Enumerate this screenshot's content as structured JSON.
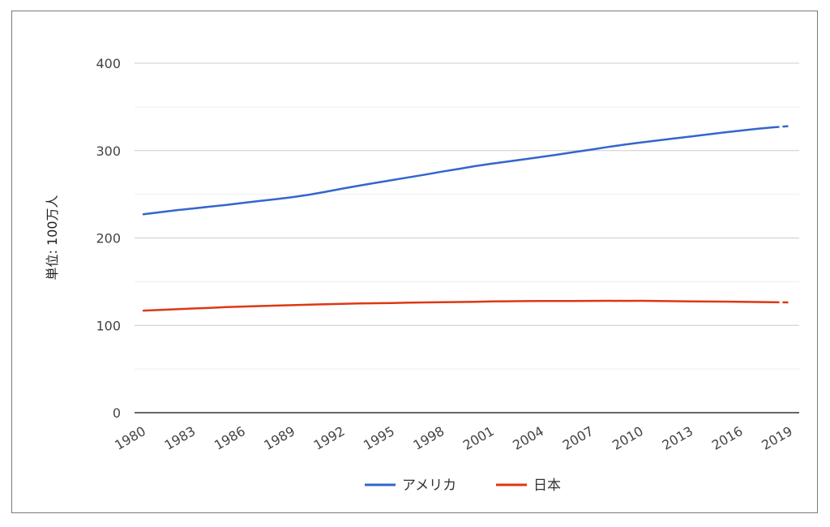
{
  "chart_data": {
    "type": "line",
    "title": "",
    "xlabel": "",
    "ylabel": "単位: 100万人",
    "ylim": [
      0,
      400
    ],
    "yticks": [
      0,
      100,
      200,
      300,
      400
    ],
    "grid": true,
    "legend_position": "bottom",
    "x": [
      1980,
      1981,
      1982,
      1983,
      1984,
      1985,
      1986,
      1987,
      1988,
      1989,
      1990,
      1991,
      1992,
      1993,
      1994,
      1995,
      1996,
      1997,
      1998,
      1999,
      2000,
      2001,
      2002,
      2003,
      2004,
      2005,
      2006,
      2007,
      2008,
      2009,
      2010,
      2011,
      2012,
      2013,
      2014,
      2015,
      2016,
      2017,
      2018,
      2019
    ],
    "xtick_labels": [
      "1980",
      "1983",
      "1986",
      "1989",
      "1992",
      "1995",
      "1998",
      "2001",
      "2004",
      "2007",
      "2010",
      "2013",
      "2016",
      "2019"
    ],
    "dashed_segment_x": [
      2018,
      2019
    ],
    "series": [
      {
        "name": "アメリカ",
        "color": "#3366cc",
        "values": [
          227.2,
          229.5,
          231.7,
          233.8,
          235.8,
          237.9,
          240.1,
          242.3,
          244.5,
          246.8,
          249.6,
          252.9,
          256.5,
          259.9,
          263.1,
          266.3,
          269.4,
          272.6,
          275.9,
          279.0,
          282.2,
          285.0,
          287.6,
          290.1,
          292.8,
          295.5,
          298.4,
          301.2,
          304.1,
          306.8,
          309.3,
          311.6,
          313.9,
          316.1,
          318.4,
          320.7,
          322.9,
          324.9,
          326.7,
          328.2
        ]
      },
      {
        "name": "日本",
        "color": "#dc3912",
        "values": [
          116.8,
          117.6,
          118.4,
          119.3,
          120.0,
          120.8,
          121.5,
          122.0,
          122.6,
          123.1,
          123.6,
          124.1,
          124.6,
          125.0,
          125.3,
          125.6,
          125.9,
          126.2,
          126.5,
          126.7,
          126.9,
          127.3,
          127.5,
          127.7,
          127.8,
          127.8,
          127.9,
          128.0,
          128.1,
          128.0,
          128.1,
          127.8,
          127.6,
          127.4,
          127.2,
          127.1,
          127.0,
          126.7,
          126.4,
          126.2
        ]
      }
    ]
  }
}
